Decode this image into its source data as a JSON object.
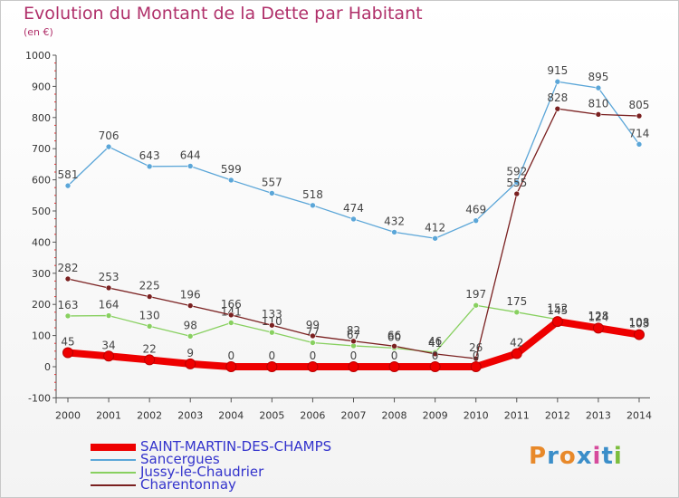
{
  "title": "Evolution du Montant de la Dette par Habitant",
  "unit": "(en €)",
  "logo": "Proxiti",
  "chart_data": {
    "type": "line",
    "title": "Evolution du Montant de la Dette par Habitant",
    "ylabel": "(en €)",
    "xlabel": "",
    "ylim": [
      -100,
      1000
    ],
    "yticks": [
      -100,
      0,
      100,
      200,
      300,
      400,
      500,
      600,
      700,
      800,
      900,
      1000
    ],
    "categories": [
      "2000",
      "2001",
      "2002",
      "2003",
      "2004",
      "2005",
      "2006",
      "2007",
      "2008",
      "2009",
      "2010",
      "2011",
      "2012",
      "2013",
      "2014"
    ],
    "grid": false,
    "legend": "bottom-left",
    "series": [
      {
        "name": "SAINT-MARTIN-DES-CHAMPS",
        "color": "#ee0000",
        "values": [
          45,
          34,
          22,
          9,
          0,
          0,
          0,
          0,
          0,
          0,
          0,
          42,
          145,
          124,
          103
        ]
      },
      {
        "name": "Sancergues",
        "color": "#5ba6d8",
        "values": [
          581,
          706,
          643,
          644,
          599,
          557,
          518,
          474,
          432,
          412,
          469,
          592,
          915,
          895,
          714
        ]
      },
      {
        "name": "Jussy-le-Chaudrier",
        "color": "#88d060",
        "values": [
          163,
          164,
          130,
          98,
          141,
          110,
          77,
          67,
          60,
          46,
          197,
          175,
          152,
          128,
          108
        ]
      },
      {
        "name": "Charentonnay",
        "color": "#7a2020",
        "values": [
          282,
          253,
          225,
          196,
          166,
          133,
          99,
          82,
          66,
          41,
          26,
          555,
          828,
          810,
          805
        ]
      }
    ]
  }
}
